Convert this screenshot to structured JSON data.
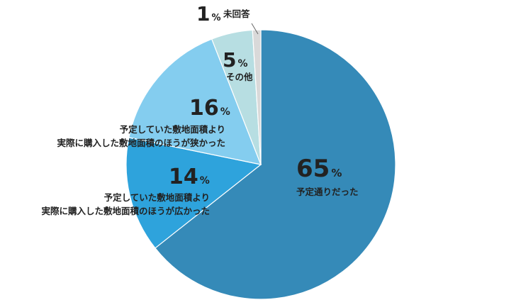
{
  "chart_data": {
    "type": "pie",
    "title": "",
    "start_angle": "12 o'clock, clockwise",
    "slices": [
      {
        "value": 65,
        "pct": "65",
        "unit": "%",
        "label_lines": [
          "予定通りだった"
        ],
        "color": "#358AB8"
      },
      {
        "value": 14,
        "pct": "14",
        "unit": "%",
        "label_lines": [
          "予定していた敷地面積より",
          "実際に購入した敷地面積のほうが広かった"
        ],
        "color": "#2EA3DC"
      },
      {
        "value": 16,
        "pct": "16",
        "unit": "%",
        "label_lines": [
          "予定していた敷地面積より",
          "実際に購入した敷地面積のほうが狭かった"
        ],
        "color": "#84CDEF"
      },
      {
        "value": 5,
        "pct": "5",
        "unit": "%",
        "label_lines": [
          "その他"
        ],
        "color": "#B7DEE2"
      },
      {
        "value": 1,
        "pct": "1",
        "unit": "%",
        "label_lines": [
          "未回答"
        ],
        "color": "#D9D9D9"
      }
    ]
  }
}
